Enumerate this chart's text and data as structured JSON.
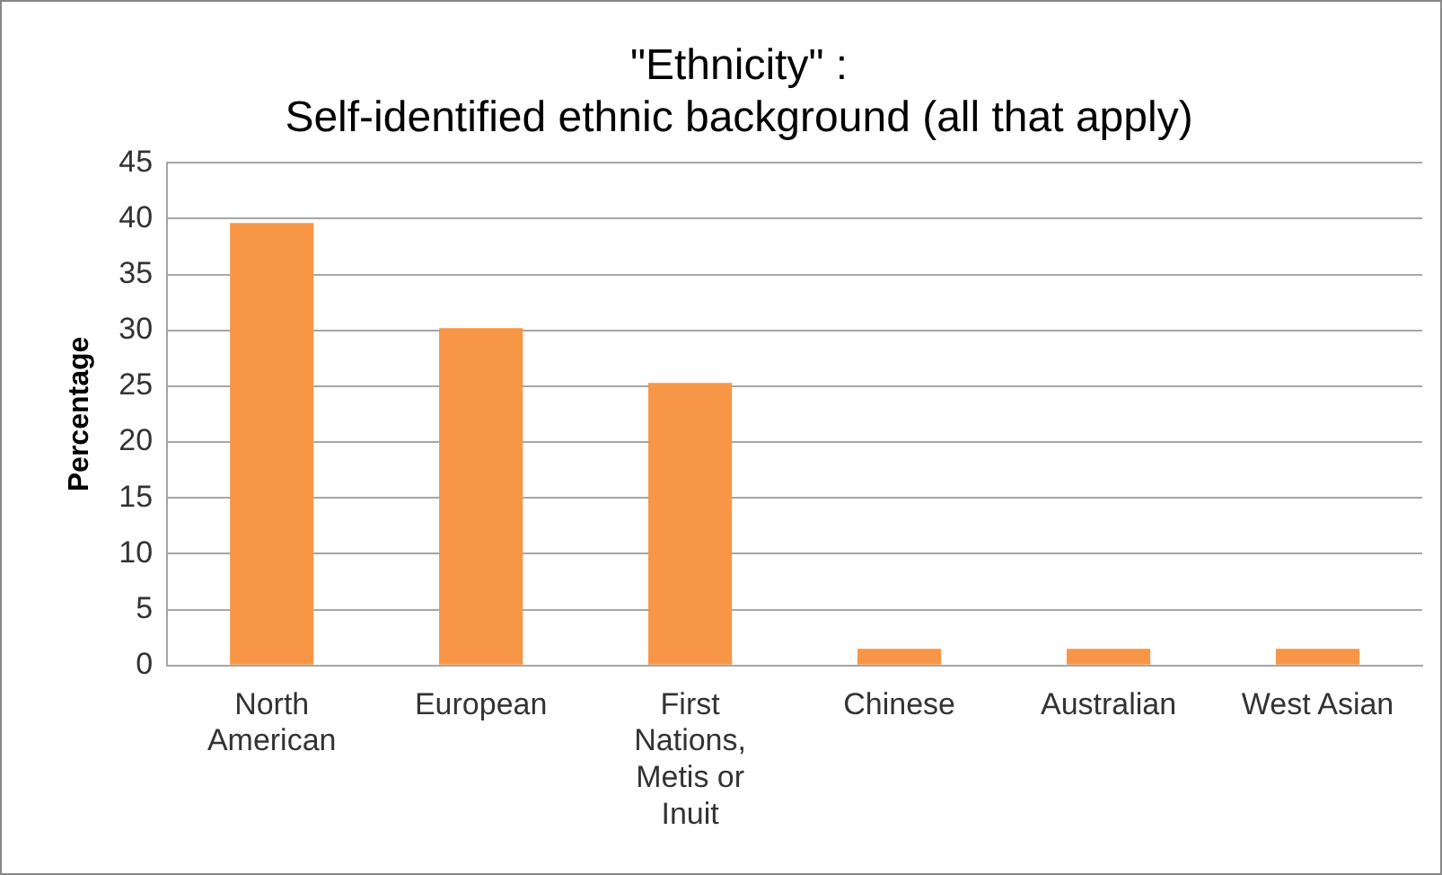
{
  "chart_data": {
    "type": "bar",
    "title": "\"Ethnicity\" :\nSelf-identified ethnic background (all that apply)",
    "ylabel": "Percentage",
    "categories": [
      "North American",
      "European",
      "First Nations, Metis or Inuit",
      "Chinese",
      "Australian",
      "West Asian"
    ],
    "values": [
      39.6,
      30.2,
      25.3,
      1.5,
      1.5,
      1.5
    ],
    "color": "#f79646",
    "ylim": [
      0,
      45
    ],
    "yticks": [
      0,
      5,
      10,
      15,
      20,
      25,
      30,
      35,
      40,
      45
    ],
    "grid": "y",
    "legend": false
  }
}
